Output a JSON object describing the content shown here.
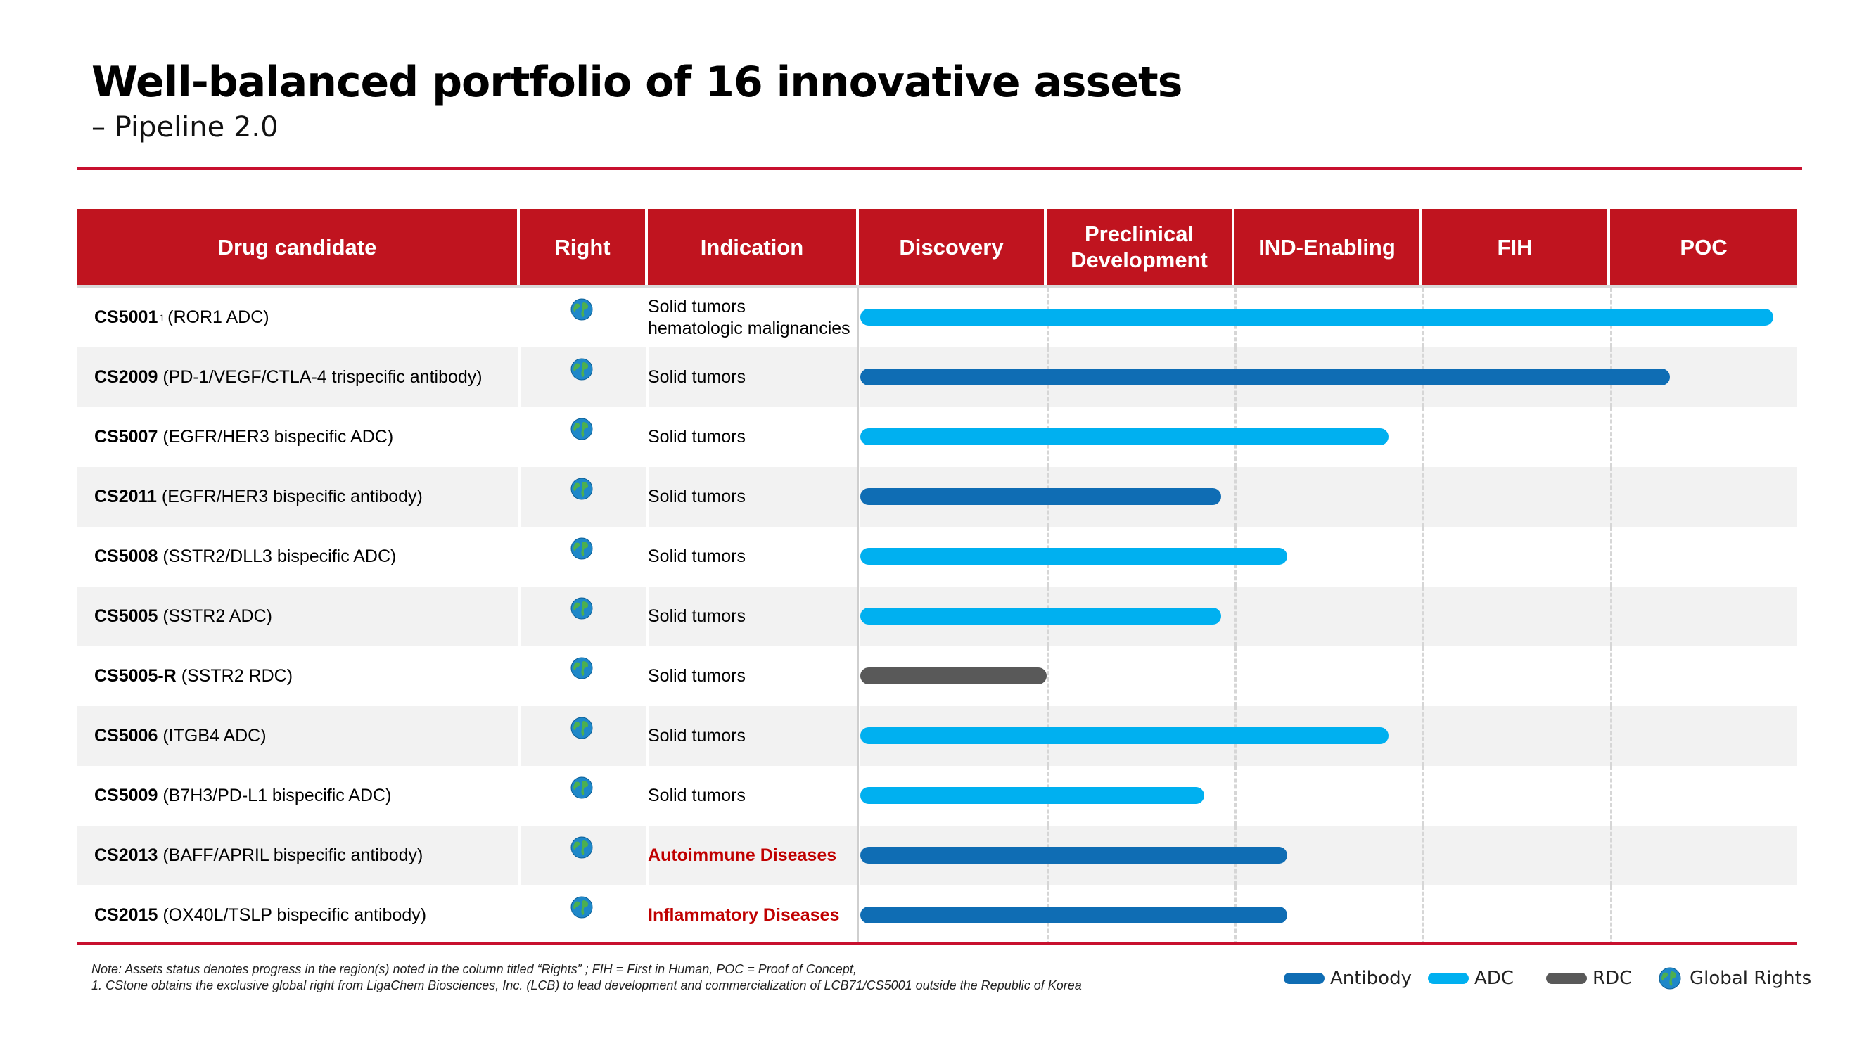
{
  "title": "Well-balanced portfolio of 16 innovative assets",
  "subtitle": "– Pipeline 2.0",
  "colors": {
    "brand_red": "#c0141f",
    "antibody": "#0f6db4",
    "adc": "#00b0f0",
    "rdc": "#595959",
    "disease_red": "#c00000"
  },
  "chart_data": {
    "type": "table",
    "columns": [
      "Drug candidate",
      "Right",
      "Indication",
      "Discovery",
      "Preclinical Development",
      "IND-Enabling",
      "FIH",
      "POC"
    ],
    "stages": [
      "Discovery",
      "Preclinical Development",
      "IND-Enabling",
      "FIH",
      "POC"
    ],
    "rows": [
      {
        "code": "CS5001",
        "footnote": "1",
        "desc": "(ROR1 ADC)",
        "right": "global-icon",
        "indication": [
          "Solid tumors",
          "hematologic malignancies"
        ],
        "indication_highlight": false,
        "modality": "ADC",
        "progress": 4.87
      },
      {
        "code": "CS2009",
        "footnote": "",
        "desc": "(PD-1/VEGF/CTLA-4 trispecific antibody)",
        "right": "global-icon",
        "indication": [
          "Solid tumors"
        ],
        "indication_highlight": false,
        "modality": "Antibody",
        "progress": 4.32
      },
      {
        "code": "CS5007",
        "footnote": "",
        "desc": "(EGFR/HER3 bispecific ADC)",
        "right": "global-icon",
        "indication": [
          "Solid tumors"
        ],
        "indication_highlight": false,
        "modality": "ADC",
        "progress": 2.82
      },
      {
        "code": "CS2011",
        "footnote": "",
        "desc": "(EGFR/HER3 bispecific antibody)",
        "right": "global-icon",
        "indication": [
          "Solid tumors"
        ],
        "indication_highlight": false,
        "modality": "Antibody",
        "progress": 1.93
      },
      {
        "code": "CS5008",
        "footnote": "",
        "desc": "(SSTR2/DLL3 bispecific ADC)",
        "right": "global-icon",
        "indication": [
          "Solid tumors"
        ],
        "indication_highlight": false,
        "modality": "ADC",
        "progress": 2.28
      },
      {
        "code": "CS5005",
        "footnote": "",
        "desc": "(SSTR2 ADC)",
        "right": "global-icon",
        "indication": [
          "Solid tumors"
        ],
        "indication_highlight": false,
        "modality": "ADC",
        "progress": 1.93
      },
      {
        "code": "CS5005-R",
        "footnote": "",
        "desc": "(SSTR2 RDC)",
        "right": "global-icon",
        "indication": [
          "Solid tumors"
        ],
        "indication_highlight": false,
        "modality": "RDC",
        "progress": 1.0
      },
      {
        "code": "CS5006",
        "footnote": "",
        "desc": "(ITGB4 ADC)",
        "right": "global-icon",
        "indication": [
          "Solid tumors"
        ],
        "indication_highlight": false,
        "modality": "ADC",
        "progress": 2.82
      },
      {
        "code": "CS5009",
        "footnote": "",
        "desc": "(B7H3/PD-L1 bispecific ADC)",
        "right": "global-icon",
        "indication": [
          "Solid tumors"
        ],
        "indication_highlight": false,
        "modality": "ADC",
        "progress": 1.84
      },
      {
        "code": "CS2013",
        "footnote": "",
        "desc": "(BAFF/APRIL bispecific antibody)",
        "right": "global-icon",
        "indication": [
          "Autoimmune Diseases"
        ],
        "indication_highlight": true,
        "modality": "Antibody",
        "progress": 2.28
      },
      {
        "code": "CS2015",
        "footnote": "",
        "desc": "(OX40L/TSLP bispecific antibody)",
        "right": "global-icon",
        "indication": [
          "Inflammatory Diseases"
        ],
        "indication_highlight": true,
        "modality": "Antibody",
        "progress": 2.28
      }
    ],
    "legend": [
      {
        "label": "Antibody",
        "color": "#0f6db4"
      },
      {
        "label": "ADC",
        "color": "#00b0f0"
      },
      {
        "label": "RDC",
        "color": "#595959"
      },
      {
        "label": "Global Rights",
        "icon": "globe-icon"
      }
    ]
  },
  "notes": [
    "Note: Assets status denotes progress in the region(s) noted in the column titled    “Rights” ; FIH = First in Human, POC = Proof of Concept,",
    "1. CStone obtains the exclusive global right from LigaChem Biosciences, Inc. (LCB) to lead development and commercialization of LCB71/CS5001 outside the Republic of Korea"
  ]
}
